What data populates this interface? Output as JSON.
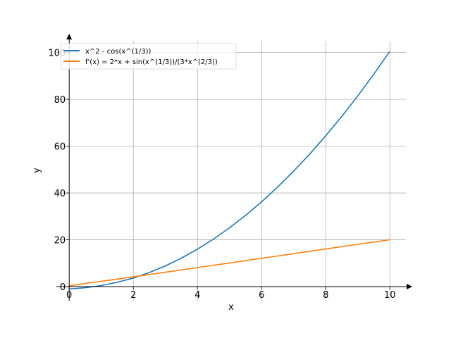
{
  "chart_data": {
    "type": "line",
    "title": "",
    "xlabel": "x",
    "ylabel": "y",
    "xlim": [
      -0.4,
      10.5
    ],
    "ylim": [
      -6,
      105
    ],
    "grid": true,
    "legend_position": "top-left",
    "xticks": [
      0,
      2,
      4,
      6,
      8,
      10
    ],
    "yticks": [
      0,
      20,
      40,
      60,
      80,
      100
    ],
    "xtick_labels": [
      "0",
      "2",
      "4",
      "6",
      "8",
      "10"
    ],
    "ytick_labels": [
      "0",
      "20",
      "40",
      "60",
      "80",
      "100"
    ],
    "series": [
      {
        "name": "x^2 - cos(x^(1/3))",
        "color": "#1f77b4",
        "x": [
          0,
          0.5,
          1,
          1.5,
          2,
          2.5,
          3,
          3.5,
          4,
          4.5,
          5,
          5.5,
          6,
          6.5,
          7,
          7.5,
          8,
          8.5,
          9,
          9.5,
          10
        ],
        "y": [
          -1,
          -0.451,
          0.46,
          1.837,
          3.694,
          6.038,
          8.872,
          12.198,
          16.017,
          20.33,
          25.139,
          30.443,
          36.244,
          42.541,
          49.336,
          56.627,
          64.416,
          72.703,
          81.488,
          90.77,
          100.551
        ]
      },
      {
        "name": "f'(x) = 2*x + sin(x^(1/3))/(3*x^(2/3))",
        "color": "#ff7f0e",
        "x": [
          0,
          0.5,
          1,
          1.5,
          2,
          2.5,
          3,
          4,
          5,
          6,
          7,
          8,
          9,
          10
        ],
        "y": [
          0.333,
          1.377,
          2.28,
          3.232,
          4.2,
          5.177,
          6.159,
          8.132,
          10.113,
          12.098,
          14.086,
          16.076,
          18.067,
          20.06
        ]
      }
    ]
  }
}
